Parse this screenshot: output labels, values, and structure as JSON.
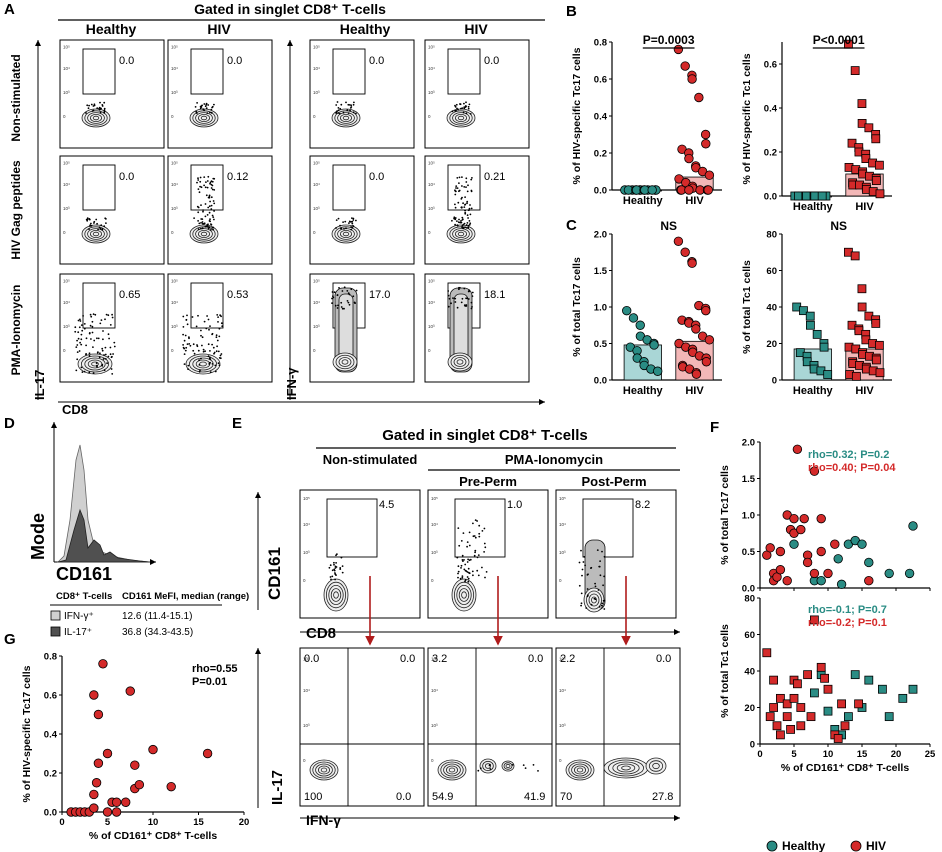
{
  "panel_a": {
    "letter": "A",
    "header": "Gated in singlet CD8⁺ T-cells",
    "groups": [
      "Healthy",
      "HIV",
      "Healthy",
      "HIV"
    ],
    "rows": [
      "Non-stimulated",
      "HIV Gag peptides",
      "PMA-Ionomycin"
    ],
    "ylabel_left": "IL-17",
    "ylabel_right": "IFN-γ",
    "xlabel": "CD8",
    "values_il17": [
      [
        "0.0",
        "0.0"
      ],
      [
        "0.0",
        "0.12"
      ],
      [
        "0.65",
        "0.53"
      ]
    ],
    "values_ifng": [
      [
        "0.0",
        "0.0"
      ],
      [
        "0.0",
        "0.21"
      ],
      [
        "17.0",
        "18.1"
      ]
    ]
  },
  "panel_b": {
    "letter": "B"
  },
  "panel_c": {
    "letter": "C"
  },
  "panel_d": {
    "letter": "D",
    "ylabel": "Mode",
    "xlabel": "CD161",
    "table_head_1": "CD8⁺ T-cells",
    "table_head_2": "CD161 MeFI, median (range)",
    "rows": [
      {
        "label": "IFN-γ⁺",
        "value": "12.6 (11.4-15.1)",
        "color": "#d0d0d0"
      },
      {
        "label": "IL-17⁺",
        "value": "36.8 (34.3-43.5)",
        "color": "#505050"
      }
    ]
  },
  "panel_e": {
    "letter": "E",
    "header": "Gated in singlet CD8⁺ T-cells",
    "col1": "Non-stimulated",
    "group2": "PMA-Ionomycin",
    "col2": "Pre-Perm",
    "col3": "Post-Perm",
    "ylabel_top": "CD161",
    "xlabel_top": "CD8",
    "ylabel_bottom": "IL-17",
    "xlabel_bottom": "IFN-γ",
    "gate_values": [
      "4.5",
      "1.0",
      "8.2"
    ],
    "quadrants": [
      [
        "0.0",
        "0.0",
        "100",
        "0.0"
      ],
      [
        "3.2",
        "0.0",
        "54.9",
        "41.9"
      ],
      [
        "2.2",
        "0.0",
        "70",
        "27.8"
      ]
    ]
  },
  "panel_f": {
    "letter": "F",
    "legend_healthy": "Healthy",
    "legend_hiv": "HIV"
  },
  "panel_g": {
    "letter": "G"
  },
  "colors": {
    "healthy": "#2a8c84",
    "hiv": "#d42a2a",
    "healthy_bar": "#a9d6d6",
    "hiv_bar": "#f3b7b7",
    "arrow": "#b01c1c"
  },
  "chart_data": [
    {
      "id": "B-left",
      "type": "scatter",
      "title": "",
      "ylabel": "% of HIV-specific Tc17 cells",
      "categories": [
        "Healthy",
        "HIV"
      ],
      "ylim": [
        0,
        0.8
      ],
      "yticks": [
        0,
        0.2,
        0.4,
        0.6,
        0.8
      ],
      "ytick_labels": [
        "0.0",
        "0.2",
        "0.4",
        "0.6",
        "0.8"
      ],
      "bars": [
        0.0,
        0.07
      ],
      "annotation": "P=0.0003",
      "series": [
        {
          "name": "Healthy",
          "values": [
            0,
            0,
            0,
            0,
            0,
            0,
            0,
            0,
            0,
            0,
            0,
            0,
            0
          ]
        },
        {
          "name": "HIV",
          "values": [
            0.76,
            0.67,
            0.62,
            0.6,
            0.5,
            0.3,
            0.25,
            0.22,
            0.2,
            0.17,
            0.13,
            0.12,
            0.1,
            0.08,
            0.06,
            0.04,
            0.02,
            0.01,
            0,
            0,
            0,
            0,
            0,
            0
          ]
        }
      ]
    },
    {
      "id": "B-right",
      "type": "scatter",
      "title": "",
      "ylabel": "% of HIV-specific Tc1 cells",
      "categories": [
        "Healthy",
        "HIV"
      ],
      "ylim": [
        0,
        0.7
      ],
      "yticks": [
        0,
        0.2,
        0.4,
        0.6
      ],
      "ytick_labels": [
        "0.0",
        "0.2",
        "0.4",
        "0.6"
      ],
      "bars": [
        0.0,
        0.1
      ],
      "annotation": "P<0.0001",
      "series": [
        {
          "name": "Healthy",
          "values": [
            0,
            0,
            0,
            0,
            0,
            0,
            0,
            0,
            0,
            0,
            0,
            0,
            0
          ]
        },
        {
          "name": "HIV",
          "values": [
            0.69,
            0.57,
            0.42,
            0.33,
            0.31,
            0.28,
            0.26,
            0.24,
            0.22,
            0.2,
            0.19,
            0.17,
            0.15,
            0.14,
            0.13,
            0.12,
            0.11,
            0.1,
            0.09,
            0.08,
            0.07,
            0.06,
            0.05,
            0.05,
            0.04,
            0.03,
            0.02,
            0.01
          ]
        }
      ]
    },
    {
      "id": "C-left",
      "type": "scatter",
      "title": "",
      "ylabel": "% of total Tc17 cells",
      "categories": [
        "Healthy",
        "HIV"
      ],
      "ylim": [
        0,
        2.0
      ],
      "yticks": [
        0,
        0.5,
        1.0,
        1.5,
        2.0
      ],
      "ytick_labels": [
        "0.0",
        "0.5",
        "1.0",
        "1.5",
        "2.0"
      ],
      "bars": [
        0.48,
        0.53
      ],
      "annotation": "NS",
      "series": [
        {
          "name": "Healthy",
          "values": [
            0.95,
            0.85,
            0.75,
            0.6,
            0.55,
            0.5,
            0.48,
            0.45,
            0.4,
            0.3,
            0.25,
            0.2,
            0.15,
            0.12
          ]
        },
        {
          "name": "HIV",
          "values": [
            1.9,
            1.75,
            1.62,
            1.6,
            1.02,
            0.98,
            0.95,
            0.82,
            0.8,
            0.78,
            0.75,
            0.7,
            0.6,
            0.55,
            0.5,
            0.45,
            0.42,
            0.38,
            0.33,
            0.3,
            0.25,
            0.2,
            0.18,
            0.15,
            0.1,
            0.08
          ]
        }
      ]
    },
    {
      "id": "C-right",
      "type": "scatter",
      "title": "",
      "ylabel": "% of total Tc1 cells",
      "categories": [
        "Healthy",
        "HIV"
      ],
      "ylim": [
        0,
        80
      ],
      "yticks": [
        0,
        20,
        40,
        60,
        80
      ],
      "ytick_labels": [
        "0",
        "20",
        "40",
        "60",
        "80"
      ],
      "bars": [
        17,
        17
      ],
      "annotation": "NS",
      "series": [
        {
          "name": "Healthy",
          "values": [
            40,
            38,
            35,
            30,
            25,
            20,
            18,
            15,
            13,
            10,
            8,
            6,
            5,
            3
          ]
        },
        {
          "name": "HIV",
          "values": [
            70,
            68,
            50,
            40,
            35,
            33,
            31,
            30,
            28,
            27,
            25,
            22,
            20,
            19,
            18,
            17,
            15,
            14,
            13,
            12,
            11,
            10,
            9,
            8,
            7,
            6,
            5,
            4,
            3,
            2
          ]
        }
      ]
    },
    {
      "id": "F-top",
      "type": "scatter",
      "title": "",
      "ylabel": "% of total Tc17 cells",
      "xlim": [
        0,
        25
      ],
      "ylim": [
        0,
        2.0
      ],
      "xticks": [
        0,
        5,
        10,
        15,
        20,
        25
      ],
      "yticks": [
        0,
        0.5,
        1.0,
        1.5,
        2.0
      ],
      "ytick_labels": [
        "0.0",
        "0.5",
        "1.0",
        "1.5",
        "2.0"
      ],
      "annotations": [
        {
          "text": "rho=0.32; P=0.2",
          "series": "Healthy"
        },
        {
          "text": "rho=0.40; P=0.04",
          "series": "HIV"
        }
      ],
      "series": [
        {
          "name": "Healthy",
          "points": [
            [
              5,
              0.6
            ],
            [
              8,
              0.1
            ],
            [
              9,
              0.1
            ],
            [
              11.5,
              0.4
            ],
            [
              12,
              0.05
            ],
            [
              13,
              0.6
            ],
            [
              14,
              0.65
            ],
            [
              15,
              0.6
            ],
            [
              16,
              0.35
            ],
            [
              19,
              0.2
            ],
            [
              22,
              0.2
            ],
            [
              22.5,
              0.85
            ]
          ]
        },
        {
          "name": "HIV",
          "points": [
            [
              1,
              0.45
            ],
            [
              1.5,
              0.55
            ],
            [
              2,
              0.2
            ],
            [
              2,
              0.1
            ],
            [
              2.5,
              0.15
            ],
            [
              3,
              0.25
            ],
            [
              3,
              0.5
            ],
            [
              4,
              0.1
            ],
            [
              4.5,
              0.8
            ],
            [
              4,
              1.0
            ],
            [
              5,
              0.95
            ],
            [
              5,
              0.75
            ],
            [
              5.5,
              1.9
            ],
            [
              6,
              0.8
            ],
            [
              6.5,
              0.95
            ],
            [
              7,
              0.45
            ],
            [
              7,
              0.35
            ],
            [
              8,
              0.2
            ],
            [
              8,
              1.6
            ],
            [
              9,
              0.5
            ],
            [
              9,
              0.95
            ],
            [
              10,
              0.2
            ],
            [
              11,
              0.6
            ],
            [
              16,
              0.1
            ]
          ]
        }
      ]
    },
    {
      "id": "F-bottom",
      "type": "scatter",
      "title": "",
      "ylabel": "% of total Tc1 cells",
      "xlabel": "% of CD161⁺ CD8⁺ T-cells",
      "xlim": [
        0,
        25
      ],
      "ylim": [
        0,
        80
      ],
      "xticks": [
        0,
        5,
        10,
        15,
        20,
        25
      ],
      "yticks": [
        0,
        20,
        40,
        60,
        80
      ],
      "ytick_labels": [
        "0",
        "20",
        "40",
        "60",
        "80"
      ],
      "annotations": [
        {
          "text": "rho=-0.1; P=0.7",
          "series": "Healthy"
        },
        {
          "text": "rho=-0.2; P=0.1",
          "series": "HIV"
        }
      ],
      "series": [
        {
          "name": "Healthy",
          "points": [
            [
              8,
              28
            ],
            [
              9,
              38
            ],
            [
              10,
              18
            ],
            [
              11,
              8
            ],
            [
              12,
              5
            ],
            [
              13,
              15
            ],
            [
              14,
              38
            ],
            [
              15,
              20
            ],
            [
              16,
              35
            ],
            [
              18,
              30
            ],
            [
              19,
              15
            ],
            [
              21,
              25
            ],
            [
              22.5,
              30
            ]
          ]
        },
        {
          "name": "HIV",
          "points": [
            [
              1,
              50
            ],
            [
              1.5,
              15
            ],
            [
              2,
              35
            ],
            [
              2,
              20
            ],
            [
              2.5,
              10
            ],
            [
              3,
              25
            ],
            [
              3,
              5
            ],
            [
              4,
              22
            ],
            [
              4,
              15
            ],
            [
              4.5,
              8
            ],
            [
              5,
              25
            ],
            [
              5,
              35
            ],
            [
              5.5,
              33
            ],
            [
              6,
              20
            ],
            [
              6,
              10
            ],
            [
              7,
              38
            ],
            [
              7.5,
              15
            ],
            [
              8,
              68
            ],
            [
              9,
              42
            ],
            [
              9.5,
              36
            ],
            [
              10,
              30
            ],
            [
              11,
              5
            ],
            [
              11.5,
              3
            ],
            [
              12,
              22
            ],
            [
              12.5,
              10
            ],
            [
              14.5,
              22
            ]
          ]
        }
      ]
    },
    {
      "id": "G",
      "type": "scatter",
      "title": "",
      "ylabel": "% of HIV-specific Tc17 cells",
      "xlabel": "% of CD161⁺ CD8⁺ T-cells",
      "xlim": [
        0,
        20
      ],
      "ylim": [
        0,
        0.8
      ],
      "xticks": [
        0,
        5,
        10,
        15,
        20
      ],
      "yticks": [
        0,
        0.2,
        0.4,
        0.6,
        0.8
      ],
      "ytick_labels": [
        "0.0",
        "0.2",
        "0.4",
        "0.6",
        "0.8"
      ],
      "annotations": [
        {
          "text": "rho=0.55",
          "series": "HIV"
        },
        {
          "text": "P=0.01",
          "series": "HIV"
        }
      ],
      "series": [
        {
          "name": "HIV",
          "points": [
            [
              1,
              0
            ],
            [
              1.5,
              0
            ],
            [
              2,
              0
            ],
            [
              2.5,
              0
            ],
            [
              3,
              0
            ],
            [
              3.5,
              0.02
            ],
            [
              3.5,
              0.09
            ],
            [
              3.5,
              0.6
            ],
            [
              3.8,
              0.15
            ],
            [
              4,
              0.25
            ],
            [
              4,
              0.5
            ],
            [
              4.5,
              0.76
            ],
            [
              5,
              0
            ],
            [
              5,
              0.3
            ],
            [
              5.5,
              0.05
            ],
            [
              6,
              0
            ],
            [
              6,
              0.05
            ],
            [
              7,
              0.05
            ],
            [
              7.5,
              0.62
            ],
            [
              8,
              0.24
            ],
            [
              8,
              0.12
            ],
            [
              8.5,
              0.14
            ],
            [
              10,
              0.32
            ],
            [
              12,
              0.13
            ],
            [
              16,
              0.3
            ]
          ]
        }
      ]
    }
  ]
}
